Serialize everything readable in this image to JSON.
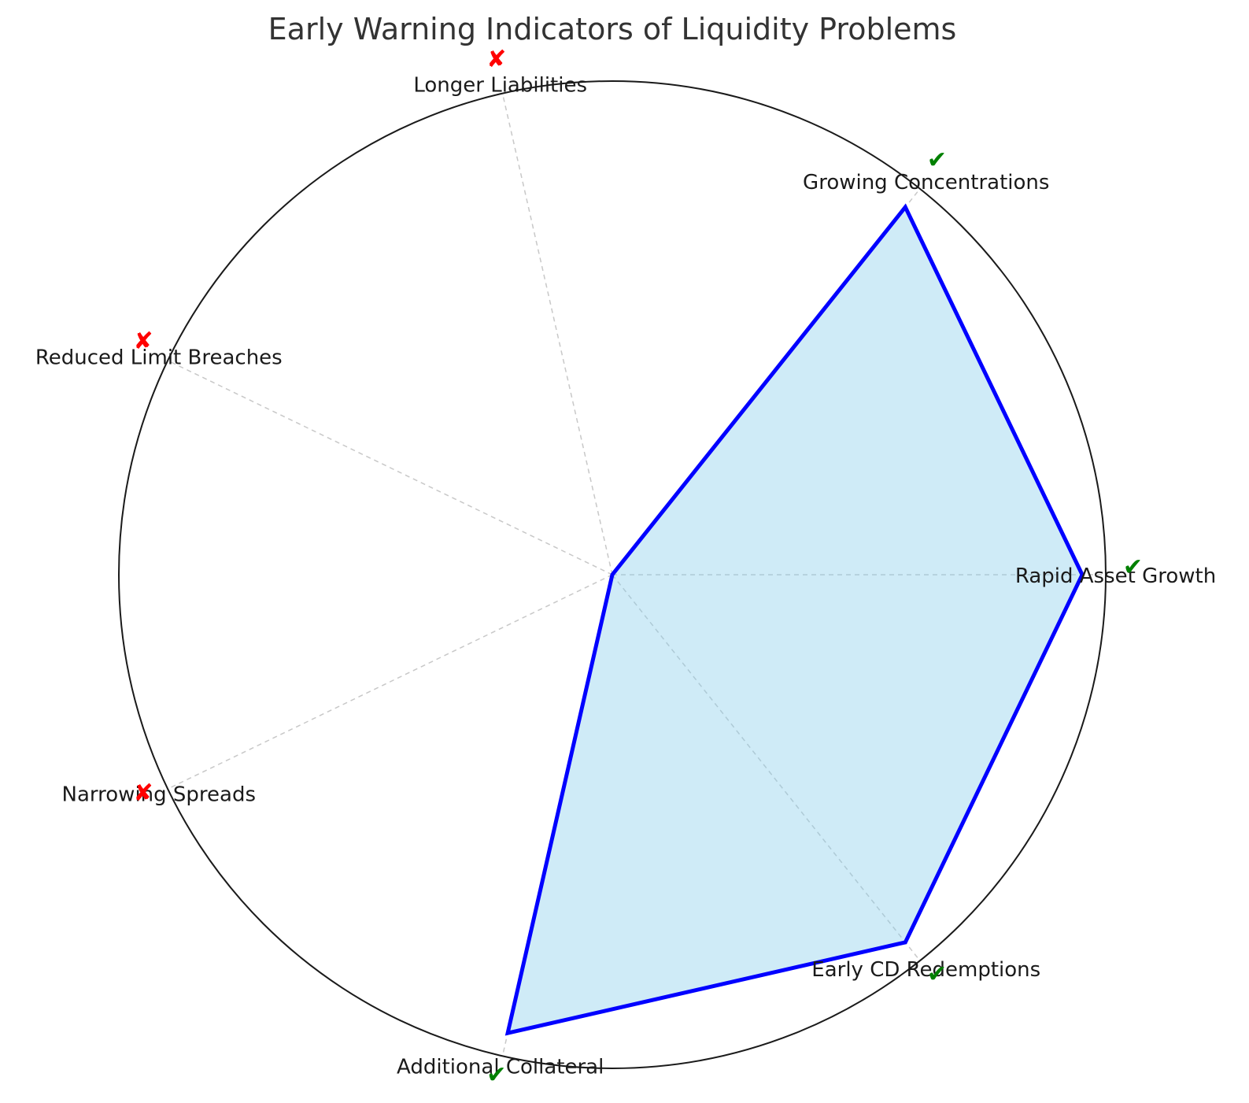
{
  "chart_data": {
    "type": "radar",
    "title": "Early Warning Indicators of Liquidity Problems",
    "categories": [
      "Rapid Asset Growth",
      "Growing Concentrations",
      "Longer Liabilities",
      "Reduced Limit Breaches",
      "Narrowing Spreads",
      "Additional Collateral",
      "Early CD Redemptions"
    ],
    "values": [
      1,
      1,
      0,
      0,
      0,
      1,
      1
    ],
    "markers": [
      "check",
      "check",
      "cross",
      "cross",
      "cross",
      "check",
      "check"
    ],
    "rlim": [
      0,
      1.05
    ],
    "grid": true
  },
  "colors": {
    "line": "#0000ff",
    "fill": "#87ceeb",
    "check": "#008000",
    "cross": "#ff0000",
    "outline": "#1a1a1a",
    "grid": "#c8c8c8"
  },
  "icons": {
    "check": "✔",
    "cross": "✘"
  }
}
